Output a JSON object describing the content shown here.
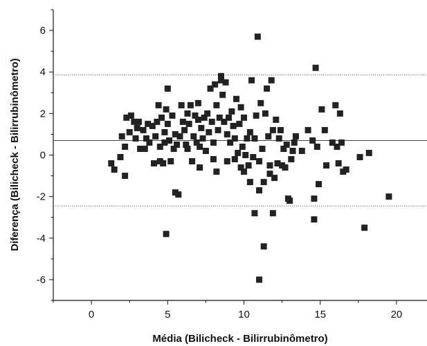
{
  "chart_data": {
    "type": "scatter",
    "title": "",
    "xlabel": "Média (Bilicheck - Bilirrubinômetro)",
    "ylabel": "Diferença (Bilicheck - Bilirrubinômetro)",
    "xlim": [
      -2.5,
      22
    ],
    "ylim": [
      -7,
      7
    ],
    "xticks": [
      0,
      5,
      10,
      15,
      20
    ],
    "yticks": [
      -6,
      -4,
      -2,
      0,
      2,
      4,
      6
    ],
    "x_tick_labels": [
      "0",
      "5",
      "10",
      "15",
      "20"
    ],
    "y_tick_labels": [
      "-6",
      "-4",
      "-2",
      "0",
      "2",
      "4",
      "6"
    ],
    "reference_lines": [
      {
        "name": "mean",
        "y": 0.7,
        "style": "solid"
      },
      {
        "name": "upper_limit",
        "y": 3.85,
        "style": "dotted"
      },
      {
        "name": "lower_limit",
        "y": -2.45,
        "style": "dotted"
      }
    ],
    "grid": false,
    "marker": "square",
    "marker_color": "#222222",
    "series": [
      {
        "points": [
          [
            1.3,
            -0.4
          ],
          [
            1.5,
            -0.7
          ],
          [
            1.9,
            -0.1
          ],
          [
            2.0,
            0.9
          ],
          [
            2.2,
            -1.0
          ],
          [
            2.2,
            0.4
          ],
          [
            2.3,
            1.8
          ],
          [
            2.5,
            1.1
          ],
          [
            2.6,
            1.9
          ],
          [
            2.8,
            1.6
          ],
          [
            2.9,
            0.8
          ],
          [
            3.0,
            1.3
          ],
          [
            3.1,
            1.6
          ],
          [
            3.2,
            0.3
          ],
          [
            3.4,
            1.2
          ],
          [
            3.5,
            0.3
          ],
          [
            3.6,
            0.8
          ],
          [
            3.7,
            1.5
          ],
          [
            3.8,
            0.6
          ],
          [
            4.0,
            1.4
          ],
          [
            4.1,
            -0.4
          ],
          [
            4.2,
            0.9
          ],
          [
            4.3,
            1.6
          ],
          [
            4.4,
            2.4
          ],
          [
            4.5,
            0.4
          ],
          [
            4.5,
            -0.3
          ],
          [
            4.6,
            1.8
          ],
          [
            4.7,
            -0.4
          ],
          [
            4.8,
            1.1
          ],
          [
            4.8,
            0.6
          ],
          [
            4.9,
            2.2
          ],
          [
            5.0,
            1.5
          ],
          [
            5.0,
            3.2
          ],
          [
            4.9,
            -3.8
          ],
          [
            5.1,
            0.7
          ],
          [
            5.2,
            -0.3
          ],
          [
            5.3,
            1.9
          ],
          [
            5.4,
            0.3
          ],
          [
            5.5,
            1.0
          ],
          [
            5.6,
            0.5
          ],
          [
            5.5,
            -1.8
          ],
          [
            5.7,
            -1.9
          ],
          [
            5.8,
            0.9
          ],
          [
            5.9,
            2.4
          ],
          [
            6.0,
            1.6
          ],
          [
            6.1,
            1.2
          ],
          [
            6.2,
            0.5
          ],
          [
            6.3,
            0.3
          ],
          [
            6.3,
            2.0
          ],
          [
            6.4,
            1.5
          ],
          [
            6.5,
            2.4
          ],
          [
            6.6,
            -0.3
          ],
          [
            6.7,
            0.9
          ],
          [
            6.8,
            1.9
          ],
          [
            6.9,
            0.6
          ],
          [
            7.0,
            2.5
          ],
          [
            7.0,
            1.7
          ],
          [
            7.1,
            0.4
          ],
          [
            7.1,
            -0.6
          ],
          [
            7.2,
            1.3
          ],
          [
            7.3,
            0.8
          ],
          [
            7.4,
            1.8
          ],
          [
            7.5,
            0.2
          ],
          [
            7.6,
            2.0
          ],
          [
            7.7,
            1.1
          ],
          [
            7.8,
            3.2
          ],
          [
            7.9,
            1.6
          ],
          [
            8.0,
            0.6
          ],
          [
            8.0,
            -0.2
          ],
          [
            8.1,
            3.4
          ],
          [
            8.2,
            2.4
          ],
          [
            8.2,
            -0.8
          ],
          [
            8.3,
            1.2
          ],
          [
            8.4,
            1.8
          ],
          [
            8.5,
            3.8
          ],
          [
            8.5,
            3.6
          ],
          [
            8.6,
            2.9
          ],
          [
            8.7,
            1.6
          ],
          [
            8.8,
            3.5
          ],
          [
            8.9,
            1.0
          ],
          [
            8.9,
            -0.3
          ],
          [
            9.0,
            1.8
          ],
          [
            9.1,
            0.6
          ],
          [
            9.2,
            2.1
          ],
          [
            9.3,
            1.4
          ],
          [
            9.4,
            0.8
          ],
          [
            9.4,
            -0.2
          ],
          [
            9.5,
            2.7
          ],
          [
            9.6,
            0.1
          ],
          [
            9.7,
            1.5
          ],
          [
            9.8,
            -0.6
          ],
          [
            9.8,
            2.3
          ],
          [
            9.9,
            0.4
          ],
          [
            10.0,
            -0.8
          ],
          [
            10.0,
            1.8
          ],
          [
            10.1,
            0.0
          ],
          [
            10.2,
            0.8
          ],
          [
            10.3,
            -0.5
          ],
          [
            10.4,
            -1.3
          ],
          [
            10.4,
            1.1
          ],
          [
            10.5,
            3.6
          ],
          [
            10.6,
            -0.1
          ],
          [
            10.7,
            -2.8
          ],
          [
            10.7,
            0.8
          ],
          [
            10.8,
            1.9
          ],
          [
            10.9,
            5.7
          ],
          [
            11.0,
            -0.3
          ],
          [
            11.0,
            -1.7
          ],
          [
            11.0,
            -6.0
          ],
          [
            11.1,
            2.5
          ],
          [
            11.2,
            0.3
          ],
          [
            11.3,
            -4.4
          ],
          [
            11.3,
            -1.3
          ],
          [
            11.4,
            2.0
          ],
          [
            11.5,
            3.2
          ],
          [
            11.6,
            0.9
          ],
          [
            11.7,
            -0.9
          ],
          [
            11.7,
            -0.5
          ],
          [
            11.8,
            3.6
          ],
          [
            11.9,
            1.2
          ],
          [
            11.9,
            -2.8
          ],
          [
            12.0,
            -1.1
          ],
          [
            12.1,
            1.7
          ],
          [
            12.2,
            -0.4
          ],
          [
            12.3,
            0.8
          ],
          [
            12.4,
            1.2
          ],
          [
            12.5,
            -0.5
          ],
          [
            12.6,
            0.3
          ],
          [
            12.7,
            -0.6
          ],
          [
            12.8,
            0.5
          ],
          [
            12.9,
            -2.1
          ],
          [
            13.0,
            -2.2
          ],
          [
            13.1,
            -0.2
          ],
          [
            13.2,
            0.2
          ],
          [
            13.3,
            0.6
          ],
          [
            13.4,
            0.9
          ],
          [
            13.8,
            0.2
          ],
          [
            14.2,
            1.2
          ],
          [
            14.5,
            0.7
          ],
          [
            14.6,
            -3.1
          ],
          [
            14.6,
            -2.1
          ],
          [
            14.7,
            4.2
          ],
          [
            14.8,
            0.4
          ],
          [
            14.9,
            -1.4
          ],
          [
            15.1,
            2.2
          ],
          [
            15.3,
            1.2
          ],
          [
            15.4,
            -0.5
          ],
          [
            15.8,
            0.6
          ],
          [
            16.0,
            2.4
          ],
          [
            16.1,
            0.4
          ],
          [
            16.2,
            -0.4
          ],
          [
            16.3,
            2.0
          ],
          [
            16.4,
            0.6
          ],
          [
            16.5,
            -0.8
          ],
          [
            16.7,
            -0.7
          ],
          [
            17.6,
            -0.1
          ],
          [
            17.9,
            -3.5
          ],
          [
            18.2,
            0.1
          ],
          [
            19.5,
            -2.0
          ]
        ]
      }
    ]
  }
}
